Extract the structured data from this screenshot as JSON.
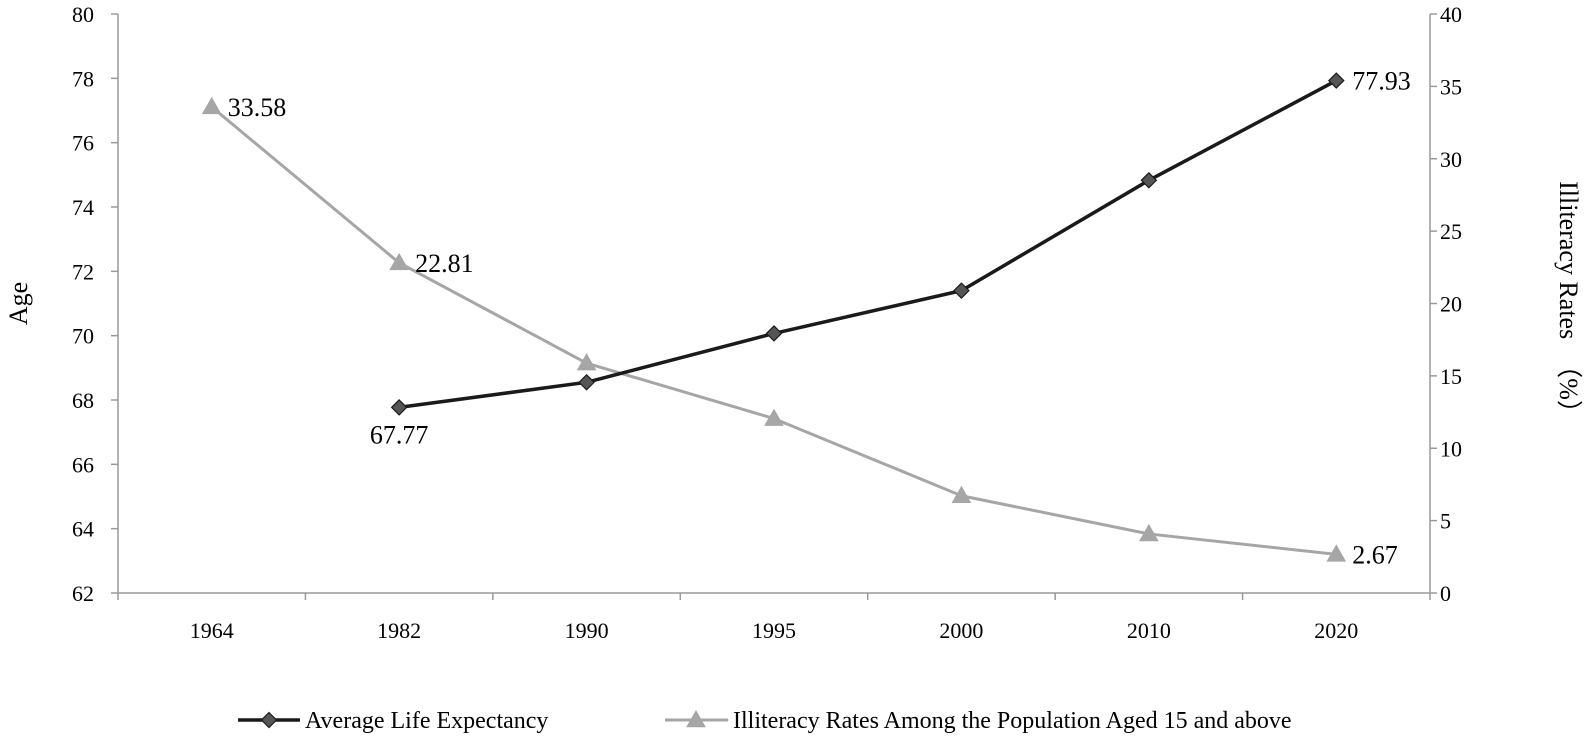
{
  "chart_data": {
    "type": "line",
    "categories": [
      "1964",
      "1982",
      "1990",
      "1995",
      "2000",
      "2010",
      "2020"
    ],
    "ylabel_left": "Age",
    "ylabel_right": "Illiteracy Rates　（%）",
    "ylim_left": [
      62,
      80
    ],
    "yticks_left": [
      62,
      64,
      66,
      68,
      70,
      72,
      74,
      76,
      78,
      80
    ],
    "ylim_right": [
      0,
      40
    ],
    "yticks_right": [
      0,
      5,
      10,
      15,
      20,
      25,
      30,
      35,
      40
    ],
    "grid": false,
    "legend_position": "bottom",
    "series": [
      {
        "name": "Average Life Expectancy",
        "axis": "left",
        "marker": "diamond",
        "color": "#1a1a1a",
        "values": [
          null,
          67.77,
          68.55,
          70.07,
          71.4,
          74.83,
          77.93
        ],
        "labels": [
          {
            "index": 1,
            "text": "67.77",
            "placement": "below"
          },
          {
            "index": 6,
            "text": "77.93",
            "placement": "right"
          }
        ]
      },
      {
        "name": "Illiteracy Rates Among the Population Aged 15 and above",
        "axis": "right",
        "marker": "triangle",
        "color": "#a6a6a6",
        "values": [
          33.58,
          22.81,
          15.88,
          12.05,
          6.72,
          4.08,
          2.67
        ],
        "labels": [
          {
            "index": 0,
            "text": "33.58",
            "placement": "right"
          },
          {
            "index": 1,
            "text": "22.81",
            "placement": "right"
          },
          {
            "index": 6,
            "text": "2.67",
            "placement": "right"
          }
        ]
      }
    ]
  }
}
